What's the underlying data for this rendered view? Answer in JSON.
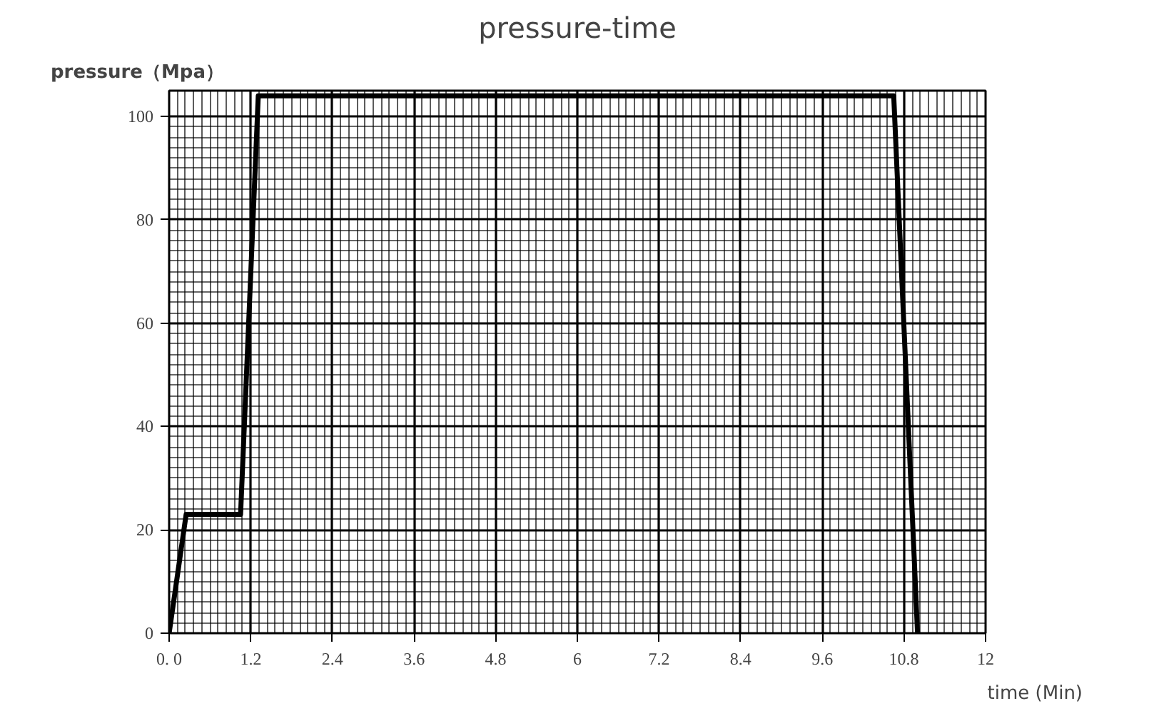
{
  "chart_data": {
    "type": "line",
    "title": "pressure-time",
    "xlabel": "time (Min)",
    "ylabel": "pressure（Mpa）",
    "x": [
      0,
      0.25,
      1.05,
      1.31,
      10.65,
      11.0
    ],
    "series": [
      {
        "color": "#000000",
        "values": [
          0,
          23,
          23,
          104,
          104,
          0
        ]
      }
    ],
    "xlim": [
      0,
      12
    ],
    "ylim": [
      0,
      105
    ],
    "xticks": [
      {
        "value": 0,
        "label": "0. 0"
      },
      1.2,
      2.4,
      3.6,
      4.8,
      6,
      7.2,
      8.4,
      9.6,
      10.8,
      12
    ],
    "yticks": [
      0,
      20,
      40,
      60,
      80,
      100
    ],
    "grid": true,
    "marker": "none",
    "line_style": "solid"
  }
}
